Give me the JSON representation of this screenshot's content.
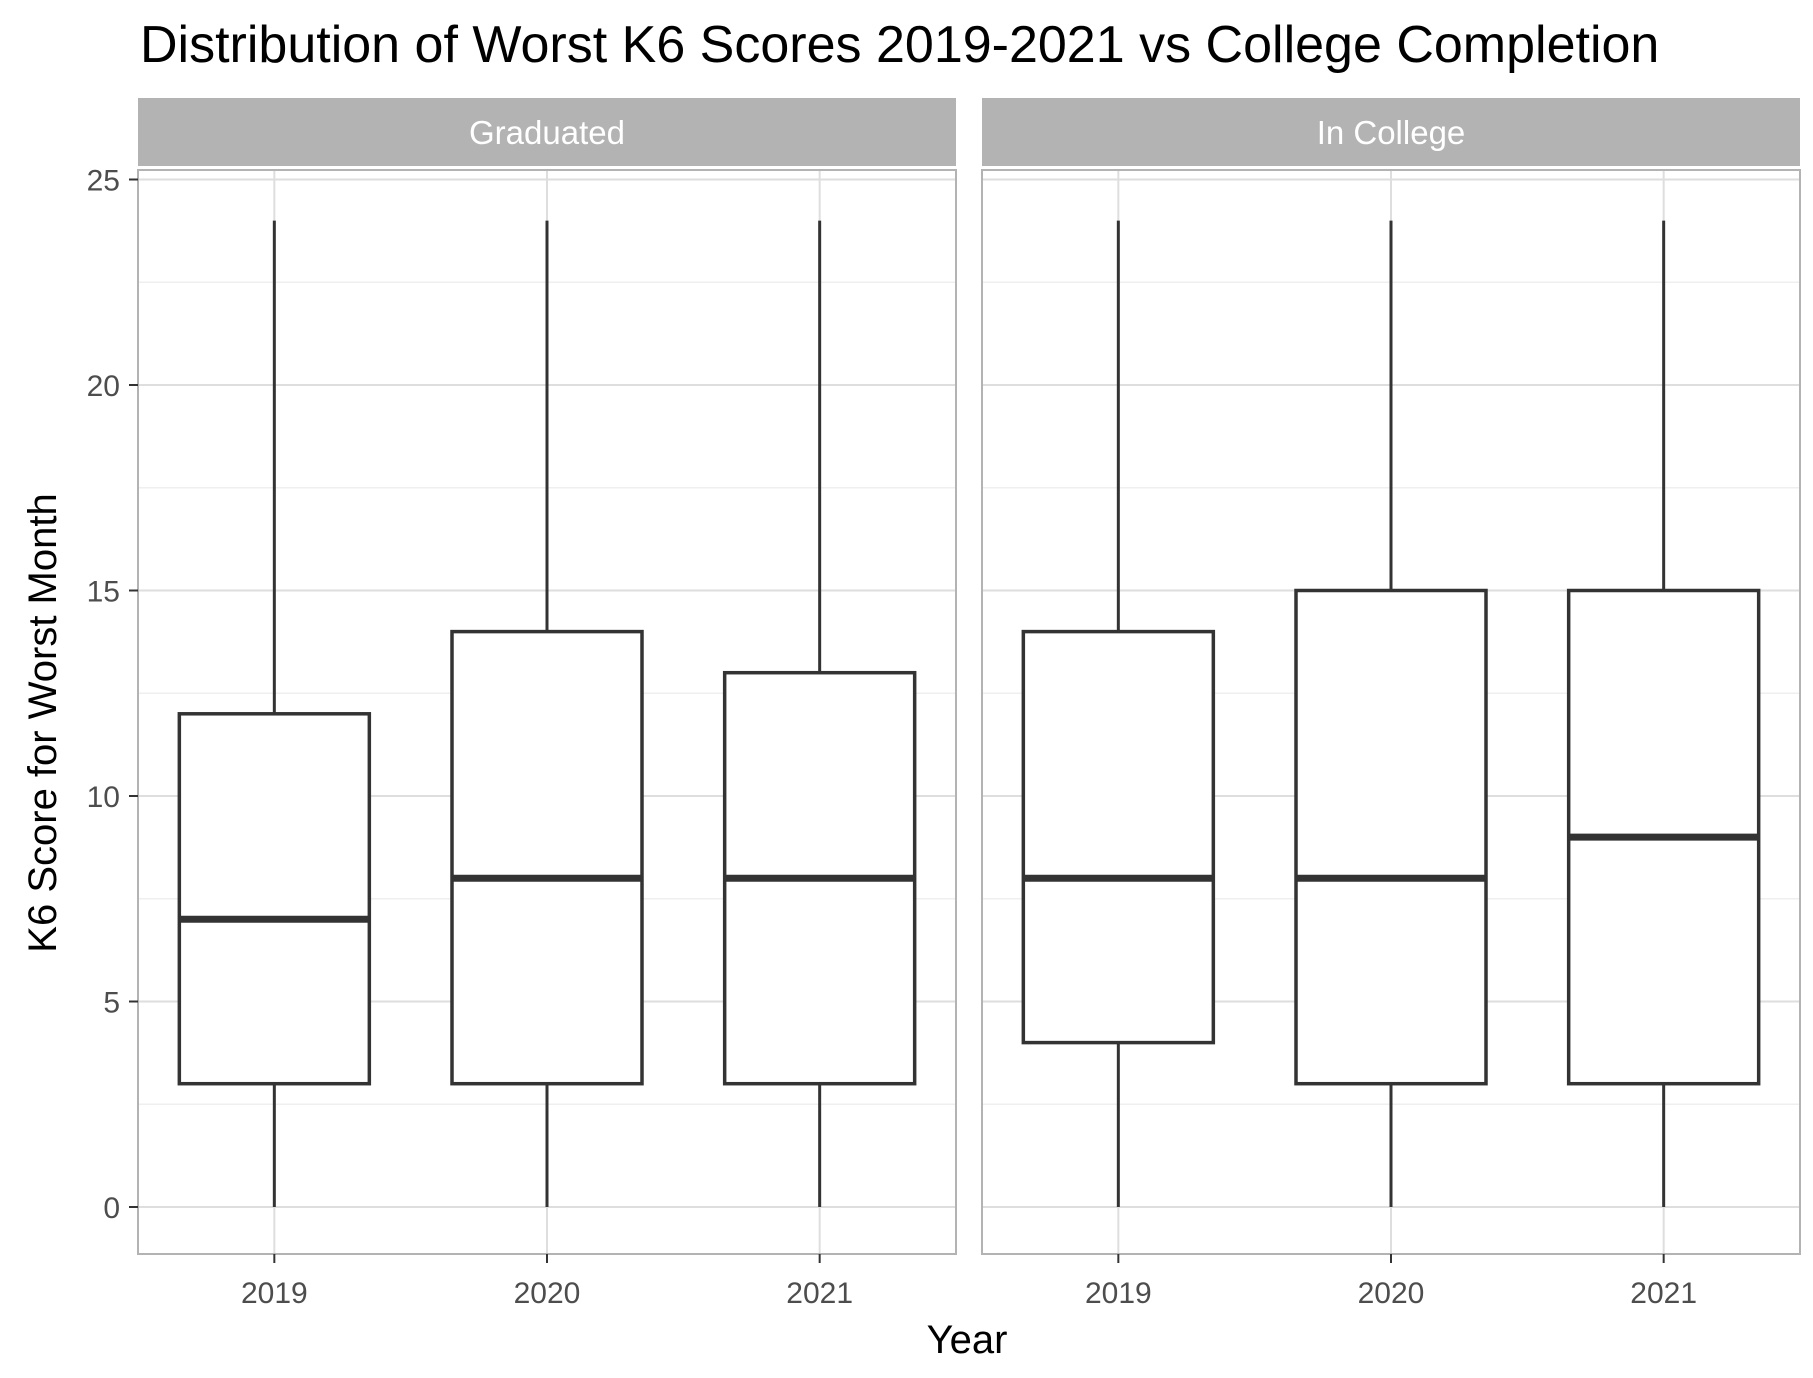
{
  "chart_data": {
    "type": "boxplot",
    "title": "Distribution of Worst K6 Scores 2019-2021 vs College Completion",
    "xlabel": "Year",
    "ylabel": "K6 Score for Worst Month",
    "ylim": [
      -1.2,
      25.2
    ],
    "y_ticks": [
      0,
      5,
      10,
      15,
      20,
      25
    ],
    "y_tick_labels": [
      "0",
      "5",
      "10",
      "15",
      "20",
      "25"
    ],
    "categories": [
      "2019",
      "2020",
      "2021"
    ],
    "grid": true,
    "facets": [
      {
        "label": "Graduated",
        "boxes": [
          {
            "x": "2019",
            "min": 0,
            "q1": 3,
            "median": 7,
            "q3": 12,
            "max": 24
          },
          {
            "x": "2020",
            "min": 0,
            "q1": 3,
            "median": 8,
            "q3": 14,
            "max": 24
          },
          {
            "x": "2021",
            "min": 0,
            "q1": 3,
            "median": 8,
            "q3": 13,
            "max": 24
          }
        ]
      },
      {
        "label": "In College",
        "boxes": [
          {
            "x": "2019",
            "min": 0,
            "q1": 4,
            "median": 8,
            "q3": 14,
            "max": 24
          },
          {
            "x": "2020",
            "min": 0,
            "q1": 3,
            "median": 8,
            "q3": 15,
            "max": 24
          },
          {
            "x": "2021",
            "min": 0,
            "q1": 3,
            "median": 9,
            "q3": 15,
            "max": 24
          }
        ]
      }
    ],
    "colors": {
      "box_stroke": "#333333",
      "box_fill": "#ffffff",
      "strip_fill": "#b3b3b3",
      "panel_border": "#b3b3b3",
      "grid_major": "#dedede",
      "grid_minor": "#efefef"
    }
  }
}
